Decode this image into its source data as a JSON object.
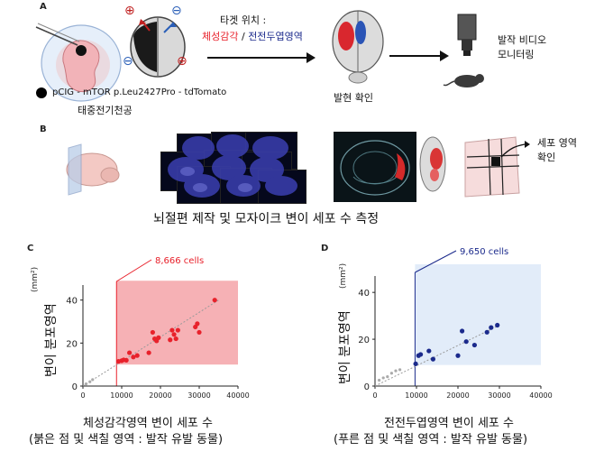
{
  "panel_a": {
    "letter": "A",
    "target_label": "타겟 위치 :",
    "target_red": "체성감각",
    "target_sep": " / ",
    "target_blue": "전전두엽영역",
    "construct": "pCIG - mTOR p.Leu2427Pro - tdTomato",
    "electroporation": "태중전기천공",
    "expression": "발현 확인",
    "video_line1": "발작 비디오",
    "video_line2": "모니터링",
    "plus_sign": "⊕",
    "minus_sign": "⊖"
  },
  "panel_b": {
    "letter": "B",
    "cell_area_line1": "세포 영역",
    "cell_area_line2": "확인",
    "caption": "뇌절편 제작 및 모자이크 변이 세포 수 측정"
  },
  "chart_data": [
    {
      "letter": "C",
      "type": "scatter",
      "color": "#e8212b",
      "shade_color": "#f4a3a8",
      "threshold_label": "8,666 cells",
      "threshold": 8666,
      "ylabel": "변이 분포영역",
      "yunit": "(mm²)",
      "xlim": [
        0,
        40000
      ],
      "ylim": [
        0,
        47
      ],
      "xticks": [
        "0",
        "10000",
        "20000",
        "30000",
        "40000"
      ],
      "xtick_values": [
        0,
        10000,
        20000,
        30000,
        40000
      ],
      "yticks": [
        "0",
        "20",
        "40"
      ],
      "ytick_values": [
        0,
        20,
        40
      ],
      "shaded_x": [
        8666,
        40000
      ],
      "shaded_y": [
        10,
        49
      ],
      "fit": [
        [
          0,
          0
        ],
        [
          35000,
          40
        ]
      ],
      "points": [
        [
          800,
          1
        ],
        [
          1800,
          2
        ],
        [
          2500,
          3
        ],
        [
          9200,
          11.5
        ],
        [
          10000,
          11.8
        ],
        [
          10500,
          12.2
        ],
        [
          11200,
          12
        ],
        [
          12000,
          15.5
        ],
        [
          13000,
          13.5
        ],
        [
          14000,
          14.2
        ],
        [
          17000,
          15.5
        ],
        [
          18000,
          25
        ],
        [
          18500,
          22
        ],
        [
          19500,
          22.5
        ],
        [
          19000,
          21
        ],
        [
          22500,
          21.5
        ],
        [
          23500,
          24
        ],
        [
          24000,
          22
        ],
        [
          23000,
          26
        ],
        [
          24500,
          26
        ],
        [
          29000,
          27.5
        ],
        [
          29500,
          29
        ],
        [
          30000,
          25
        ],
        [
          34000,
          40
        ]
      ],
      "caption_line1": "체성감각영역  변이 세포 수",
      "caption_line2": "(붉은 점 및 색칠 영역 : 발작 유발 동물)"
    },
    {
      "letter": "D",
      "type": "scatter",
      "color": "#1b2a8c",
      "shade_color": "#dde9f8",
      "threshold_label": "9,650 cells",
      "threshold": 9650,
      "ylabel": "변이 분포영역",
      "yunit": "(mm²)",
      "xlim": [
        0,
        40000
      ],
      "ylim": [
        0,
        47
      ],
      "xticks": [
        "0",
        "10000",
        "20000",
        "30000",
        "40000"
      ],
      "xtick_values": [
        0,
        10000,
        20000,
        30000,
        40000
      ],
      "yticks": [
        "0",
        "20",
        "40"
      ],
      "ytick_values": [
        0,
        20,
        40
      ],
      "shaded_x": [
        9650,
        40000
      ],
      "shaded_y": [
        9,
        52
      ],
      "fit": [
        [
          0,
          0
        ],
        [
          30000,
          26
        ]
      ],
      "points": [
        [
          1000,
          2.5
        ],
        [
          2000,
          3.5
        ],
        [
          3000,
          4
        ],
        [
          4000,
          5.5
        ],
        [
          5000,
          6.5
        ],
        [
          6000,
          7
        ],
        [
          9800,
          9.5
        ],
        [
          10500,
          13
        ],
        [
          11000,
          13.5
        ],
        [
          13000,
          15
        ],
        [
          14000,
          11.5
        ],
        [
          20000,
          13
        ],
        [
          21000,
          23.5
        ],
        [
          22000,
          19
        ],
        [
          24000,
          17.5
        ],
        [
          27000,
          23
        ],
        [
          28000,
          25
        ],
        [
          29500,
          26
        ]
      ],
      "caption_line1": "전전두엽영역  변이 세포 수",
      "caption_line2": "(푸른 점 및 색칠 영역 : 발작 유발 동물)"
    }
  ]
}
